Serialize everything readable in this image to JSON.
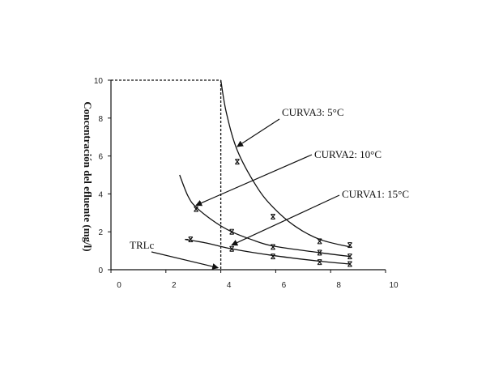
{
  "chart_data": {
    "type": "scatter",
    "title": "",
    "xlabel": "",
    "ylabel": "Concentración del efluente (mg/l)",
    "xlim": [
      0,
      10
    ],
    "ylim": [
      0,
      10
    ],
    "xticks": [
      "0",
      "2",
      "4",
      "6",
      "8",
      "10"
    ],
    "yticks": [
      "0",
      "2",
      "4",
      "6",
      "8",
      "10"
    ],
    "grid": false,
    "series": [
      {
        "name": "CURVA3: 5°C",
        "points": [
          [
            4.6,
            5.7
          ],
          [
            5.9,
            2.8
          ],
          [
            7.6,
            1.5
          ],
          [
            8.7,
            1.3
          ]
        ],
        "curve": [
          [
            4.0,
            10.0
          ],
          [
            4.2,
            8.3
          ],
          [
            4.6,
            6.3
          ],
          [
            5.3,
            4.4
          ],
          [
            5.9,
            3.3
          ],
          [
            6.7,
            2.3
          ],
          [
            7.6,
            1.6
          ],
          [
            8.7,
            1.2
          ]
        ]
      },
      {
        "name": "CURVA2: 10°C",
        "points": [
          [
            3.1,
            3.2
          ],
          [
            4.4,
            2.0
          ],
          [
            5.9,
            1.2
          ],
          [
            7.6,
            0.9
          ],
          [
            8.7,
            0.7
          ]
        ],
        "curve": [
          [
            2.5,
            5.0
          ],
          [
            2.8,
            3.9
          ],
          [
            3.1,
            3.3
          ],
          [
            3.8,
            2.5
          ],
          [
            4.4,
            2.0
          ],
          [
            5.1,
            1.6
          ],
          [
            5.9,
            1.25
          ],
          [
            7.6,
            0.9
          ],
          [
            8.7,
            0.7
          ]
        ]
      },
      {
        "name": "CURVA1: 15°C",
        "points": [
          [
            2.9,
            1.6
          ],
          [
            4.4,
            1.1
          ],
          [
            5.9,
            0.7
          ],
          [
            7.6,
            0.4
          ],
          [
            8.7,
            0.3
          ]
        ],
        "curve": [
          [
            2.7,
            1.6
          ],
          [
            3.5,
            1.4
          ],
          [
            4.4,
            1.1
          ],
          [
            5.9,
            0.75
          ],
          [
            7.6,
            0.45
          ],
          [
            8.7,
            0.3
          ]
        ]
      }
    ],
    "reference_lines": {
      "vertical_x": 4,
      "horizontal_y": 10
    },
    "annotations": [
      {
        "text": "CURVA3: 5°C",
        "arrow_to": [
          4.6,
          6.5
        ]
      },
      {
        "text": "CURVA2: 10°C",
        "arrow_to": [
          3.1,
          3.4
        ]
      },
      {
        "text": "CURVA1: 15°C",
        "arrow_to": [
          4.4,
          1.3
        ]
      },
      {
        "text": "TRLc",
        "arrow_to": [
          3.9,
          0.1
        ]
      }
    ]
  }
}
